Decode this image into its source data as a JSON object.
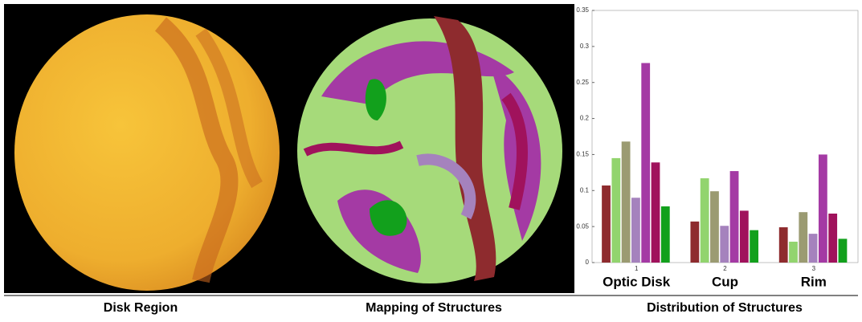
{
  "captions": [
    "Disk Region",
    "Mapping of Structures",
    "Distribution of Structures"
  ],
  "chart_data": {
    "type": "bar",
    "categories": [
      "1",
      "2",
      "3"
    ],
    "group_labels": [
      "Optic Disk",
      "Cup",
      "Rim"
    ],
    "series": [
      {
        "color": "#8e2b2e",
        "values": [
          0.107,
          0.057,
          0.049
        ]
      },
      {
        "color": "#92d46e",
        "values": [
          0.145,
          0.117,
          0.029
        ]
      },
      {
        "color": "#9b9b72",
        "values": [
          0.168,
          0.099,
          0.07
        ]
      },
      {
        "color": "#a582bd",
        "values": [
          0.09,
          0.051,
          0.04
        ]
      },
      {
        "color": "#a43aa4",
        "values": [
          0.277,
          0.127,
          0.15
        ]
      },
      {
        "color": "#a0125c",
        "values": [
          0.139,
          0.072,
          0.068
        ]
      },
      {
        "color": "#12a01c",
        "values": [
          0.078,
          0.045,
          0.033
        ]
      }
    ],
    "ylim": [
      0,
      0.35
    ],
    "yticks": [
      0,
      0.05,
      0.1,
      0.15,
      0.2,
      0.25,
      0.3,
      0.35
    ],
    "grid": false
  }
}
